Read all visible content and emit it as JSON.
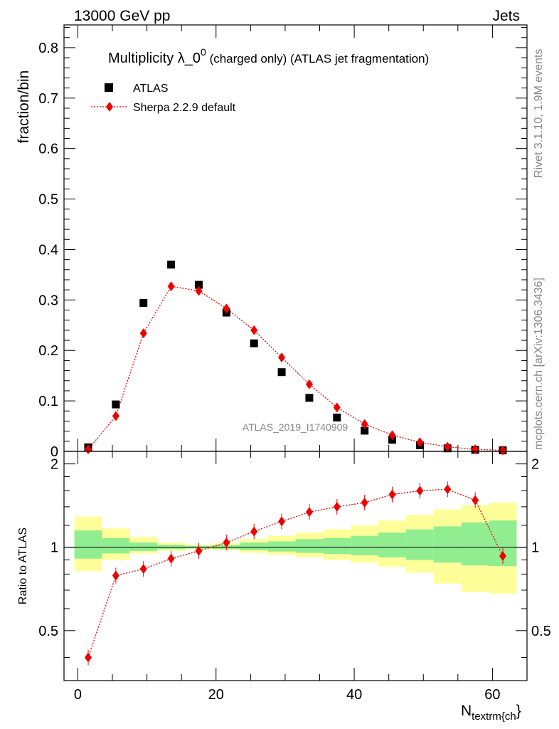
{
  "header": {
    "left": "13000 GeV pp",
    "right": "Jets",
    "side_top": "Rivet 3.1.10,  1.9M events",
    "side_bottom": "mcplots.cern.ch [arXiv:1306.3436]"
  },
  "chart_data": [
    {
      "type": "scatter",
      "title_main": "Multiplicity λ_0",
      "title_sup": "0",
      "title_rest": " (charged only) (ATLAS jet fragmentation)",
      "ylabel": "fraction/bin",
      "watermark": "ATLAS_2019_I1740909",
      "xlim": [
        -2,
        65
      ],
      "ylim": [
        0,
        0.845
      ],
      "yticks": [
        0,
        0.1,
        0.2,
        0.3,
        0.4,
        0.5,
        0.6,
        0.7,
        0.8
      ],
      "ytick_labels": [
        "0",
        "0.1",
        "0.2",
        "0.3",
        "0.4",
        "0.5",
        "0.6",
        "0.7",
        "0.8"
      ],
      "legend_position": "top-left",
      "series": [
        {
          "name": "ATLAS",
          "color": "#000000",
          "marker": "square",
          "x": [
            1.5,
            5.5,
            9.5,
            13.5,
            17.5,
            21.5,
            25.5,
            29.5,
            33.5,
            37.5,
            41.5,
            45.5,
            49.5,
            53.5,
            57.5,
            61.5
          ],
          "values": [
            0.008,
            0.093,
            0.294,
            0.37,
            0.33,
            0.275,
            0.214,
            0.157,
            0.106,
            0.067,
            0.041,
            0.023,
            0.012,
            0.006,
            0.003,
            0.002
          ]
        },
        {
          "name": "Sherpa 2.2.9 default",
          "color": "#ee0000",
          "marker": "diamond",
          "line": "dotted",
          "x": [
            1.5,
            5.5,
            9.5,
            13.5,
            17.5,
            21.5,
            25.5,
            29.5,
            33.5,
            37.5,
            41.5,
            45.5,
            49.5,
            53.5,
            57.5,
            61.5
          ],
          "values": [
            0.004,
            0.07,
            0.234,
            0.327,
            0.318,
            0.283,
            0.24,
            0.186,
            0.133,
            0.087,
            0.054,
            0.032,
            0.018,
            0.009,
            0.004,
            0.002
          ]
        }
      ]
    },
    {
      "type": "scatter",
      "ylabel": "Ratio to ATLAS",
      "xlabel_main": "N",
      "xlabel_sub": "textrm{ch",
      "xlabel_tail": "}",
      "xlim": [
        -2,
        65
      ],
      "ylim": [
        0.33,
        2.22
      ],
      "xticks": [
        0,
        20,
        40,
        60
      ],
      "xtick_labels": [
        "0",
        "20",
        "40",
        "60"
      ],
      "yticks": [
        0.5,
        1,
        2
      ],
      "ytick_labels": [
        "0.5",
        "1",
        "2"
      ],
      "reference": 1,
      "bands": {
        "bin_edges": [
          -0.5,
          3.5,
          7.5,
          11.5,
          15.5,
          19.5,
          23.5,
          27.5,
          31.5,
          35.5,
          39.5,
          43.5,
          47.5,
          51.5,
          55.5,
          59.5,
          63.5
        ],
        "inner_color": "#90ee90",
        "outer_color": "#ffff99",
        "inner_low": [
          0.91,
          0.95,
          0.97,
          0.985,
          0.99,
          0.985,
          0.975,
          0.965,
          0.955,
          0.945,
          0.935,
          0.92,
          0.9,
          0.88,
          0.86,
          0.855
        ],
        "inner_high": [
          1.15,
          1.08,
          1.04,
          1.02,
          1.01,
          1.02,
          1.04,
          1.05,
          1.07,
          1.08,
          1.1,
          1.13,
          1.16,
          1.19,
          1.23,
          1.25
        ],
        "outer_low": [
          0.82,
          0.9,
          0.95,
          0.97,
          0.985,
          0.975,
          0.955,
          0.94,
          0.92,
          0.9,
          0.88,
          0.85,
          0.81,
          0.74,
          0.69,
          0.68
        ],
        "outer_high": [
          1.29,
          1.17,
          1.09,
          1.04,
          1.02,
          1.035,
          1.07,
          1.1,
          1.13,
          1.16,
          1.2,
          1.25,
          1.31,
          1.37,
          1.42,
          1.45
        ]
      },
      "series": [
        {
          "name": "Sherpa 2.2.9 default",
          "color": "#ee0000",
          "marker": "diamond",
          "line": "dotted",
          "x": [
            1.5,
            5.5,
            9.5,
            13.5,
            17.5,
            21.5,
            25.5,
            29.5,
            33.5,
            37.5,
            41.5,
            45.5,
            49.5,
            53.5,
            57.5,
            61.5
          ],
          "values": [
            0.4,
            0.79,
            0.835,
            0.91,
            0.97,
            1.04,
            1.14,
            1.24,
            1.34,
            1.4,
            1.45,
            1.55,
            1.6,
            1.62,
            1.48,
            0.93
          ]
        }
      ]
    }
  ]
}
